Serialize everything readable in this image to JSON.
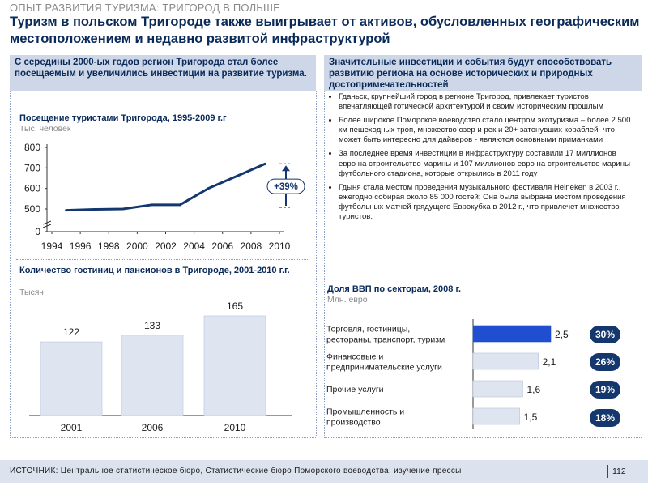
{
  "header": {
    "tracker": "ОПЫТ РАЗВИТИЯ ТУРИЗМА: ТРИГОРОД В ПОЛЬШЕ",
    "headline": "Туризм в польском Тригороде также выигрывает от активов, обусловленных географическим местоположением и недавно развитой инфраструктурой"
  },
  "left_panel": {
    "heading": "С середины 2000-ых годов регион Тригорода стал более посещаемым и увеличились инвестиции на развитие туризма."
  },
  "right_panel": {
    "heading": "Значительные инвестиции и события будут способствовать развитию региона на основе исторических и природных достопримечательностей",
    "bullets": [
      "Гданьск, крупнейший город в регионе Тригород, привлекает туристов впечатляющей готической архитектурой и своим историческим прошлым",
      "Более широкое Поморское воеводство стало центром экотуризма – более 2 500 км пешеходных троп, множество озер и рек и 20+ затонувших кораблей- что может быть интересно для дайверов - являются основными приманками",
      "За последнее время инвестиции в инфраструктуру составили 17 миллионов евро на строительство марины и 107 миллионов евро на строительство марины футбольного стадиона, которые открылись в 2011 году",
      "Гдыня стала местом проведения музыкального фестиваля Heineken в 2003 г., ежегодно собирая около 85 000 гостей; Она была выбрана местом проведения футбольных матчей грядущего Еврокубка в 2012 г., что привлечет множество туристов."
    ]
  },
  "chart_data": [
    {
      "type": "line",
      "title": "Посещение туристами Тригорода, 1995-2009 г.г",
      "unit": "Тыс. человек",
      "x": [
        1995,
        1997,
        1999,
        2001,
        2003,
        2005,
        2007,
        2009
      ],
      "y": [
        440,
        480,
        500,
        520,
        520,
        600,
        660,
        720
      ],
      "xticks": [
        1994,
        1996,
        1998,
        2000,
        2002,
        2004,
        2006,
        2008,
        2010
      ],
      "yticks": [
        0,
        500,
        600,
        700,
        800
      ],
      "ylim": [
        0,
        800
      ],
      "axis_break": true,
      "annotation": "+39%"
    },
    {
      "type": "bar",
      "title": "Количество гостиниц и пансионов в Тригороде, 2001-2010 г.г.",
      "unit": "Тысяч",
      "categories": [
        "2001",
        "2006",
        "2010"
      ],
      "values": [
        122,
        133,
        165
      ],
      "value_labels": [
        "122",
        "133",
        "165"
      ]
    },
    {
      "type": "bar",
      "orientation": "horizontal",
      "title": "Доля ВВП по секторам, 2008 г.",
      "unit": "Млн. евро",
      "categories": [
        "Торговля, гостиницы, рестораны, транспорт, туризм",
        "Финансовые и предпринимательские услуги",
        "Прочие услуги",
        "Промышленность и производство"
      ],
      "category_lines": [
        [
          "Торговля, гостиницы,",
          "рестораны, транспорт, туризм"
        ],
        [
          "Финансовые и",
          "предпринимательские услуги"
        ],
        [
          "Прочие услуги"
        ],
        [
          "Промышленность и",
          "производство"
        ]
      ],
      "values": [
        2.5,
        2.1,
        1.6,
        1.5
      ],
      "value_labels": [
        "2,5",
        "2,1",
        "1,6",
        "1,5"
      ],
      "shares": [
        "30%",
        "26%",
        "19%",
        "18%"
      ],
      "highlight_color": "#1f4fd0"
    }
  ],
  "footer": {
    "source": "ИСТОЧНИК: Центральное статистическое бюро, Статистические бюро Поморского воеводства; изучение прессы",
    "page_number": "112"
  }
}
